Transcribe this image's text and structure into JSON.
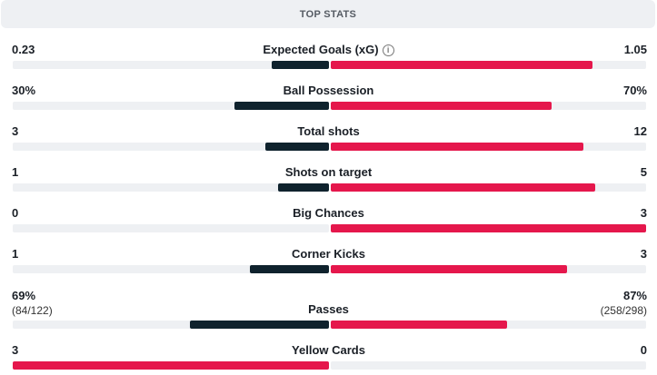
{
  "header": {
    "title": "TOP STATS"
  },
  "colors": {
    "home": "#0f222d",
    "away": "#e5174c",
    "track": "#eef0f3"
  },
  "stats": [
    {
      "name": "Expected Goals (xG)",
      "home": "0.23",
      "away": "1.05",
      "home_share": 0.18,
      "away_share": 0.83,
      "home_leader": false,
      "info_icon": "info-icon"
    },
    {
      "name": "Ball Possession",
      "home": "30%",
      "away": "70%",
      "home_share": 0.3,
      "away_share": 0.7,
      "home_leader": false
    },
    {
      "name": "Total shots",
      "home": "3",
      "away": "12",
      "home_share": 0.2,
      "away_share": 0.8,
      "home_leader": false
    },
    {
      "name": "Shots on target",
      "home": "1",
      "away": "5",
      "home_share": 0.16,
      "away_share": 0.84,
      "home_leader": false
    },
    {
      "name": "Big Chances",
      "home": "0",
      "away": "3",
      "home_share": 0.0,
      "away_share": 1.0,
      "home_leader": false
    },
    {
      "name": "Corner Kicks",
      "home": "1",
      "away": "3",
      "home_share": 0.25,
      "away_share": 0.75,
      "home_leader": false
    },
    {
      "name": "Passes",
      "home": "69%",
      "away": "87%",
      "home_sub": "(84/122)",
      "away_sub": "(258/298)",
      "home_share": 0.44,
      "away_share": 0.56,
      "home_leader": false
    },
    {
      "name": "Yellow Cards",
      "home": "3",
      "away": "0",
      "home_share": 1.0,
      "away_share": 0.0,
      "home_leader": true
    }
  ]
}
